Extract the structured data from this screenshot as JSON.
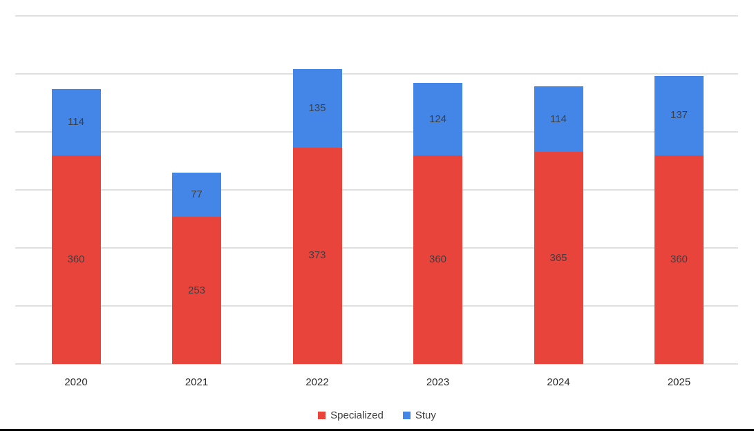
{
  "chart_data": {
    "type": "bar",
    "stacked": true,
    "title": "",
    "xlabel": "",
    "ylabel": "",
    "categories": [
      "2020",
      "2021",
      "2022",
      "2023",
      "2024",
      "2025"
    ],
    "series": [
      {
        "name": "Specialized",
        "color": "#e8443c",
        "values": [
          360,
          253,
          373,
          360,
          365,
          360
        ]
      },
      {
        "name": "Stuy",
        "color": "#4486e8",
        "values": [
          114,
          77,
          135,
          124,
          114,
          137
        ]
      }
    ],
    "totals": [
      474,
      330,
      508,
      484,
      479,
      497
    ],
    "ylim": [
      0,
      600
    ],
    "gridline_interval": 100,
    "gridlines_visible": true,
    "y_tick_labels_visible": false,
    "data_labels": "inside-center",
    "legend_position": "bottom"
  },
  "legend": {
    "items": [
      {
        "label": "Specialized",
        "color": "#e8443c"
      },
      {
        "label": "Stuy",
        "color": "#4486e8"
      }
    ]
  },
  "colors": {
    "background": "#ffffff",
    "gridline": "#e0e0e0",
    "data_label": "#3d4043",
    "axis_label": "#2b2b2b",
    "bottom_rule": "#000000"
  }
}
